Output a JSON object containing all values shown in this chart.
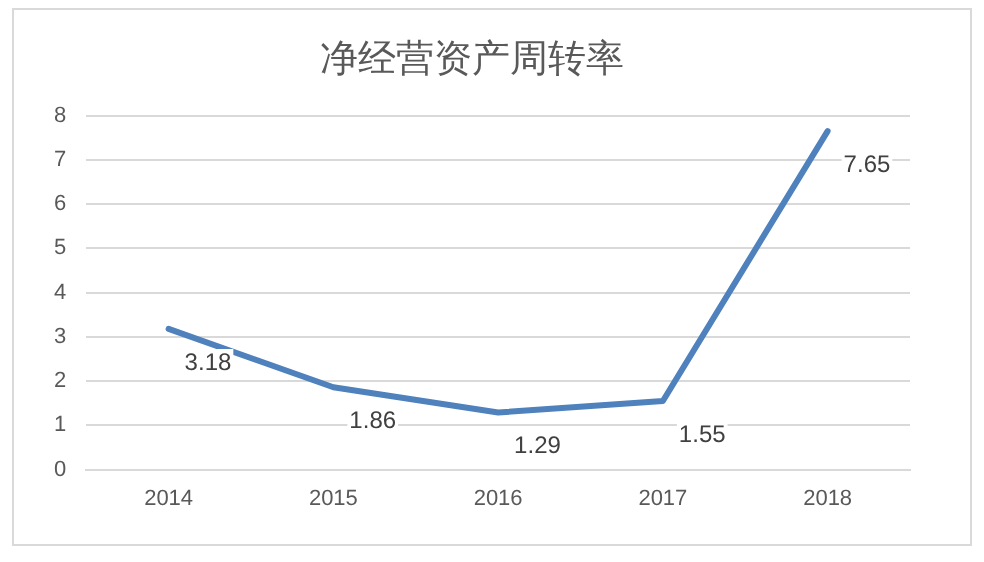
{
  "chart_data": {
    "type": "line",
    "title": "净经营资产周转率",
    "categories": [
      "2014",
      "2015",
      "2016",
      "2017",
      "2018"
    ],
    "series": [
      {
        "color": "#4f81bd",
        "values": [
          3.18,
          1.86,
          1.29,
          1.55,
          7.65
        ]
      }
    ],
    "ylim": [
      0,
      8
    ],
    "yticks": [
      0,
      1,
      2,
      3,
      4,
      5,
      6,
      7,
      8
    ],
    "grid": "y",
    "legend": false,
    "data_labels": true,
    "marker": "none",
    "line_style": "solid"
  }
}
